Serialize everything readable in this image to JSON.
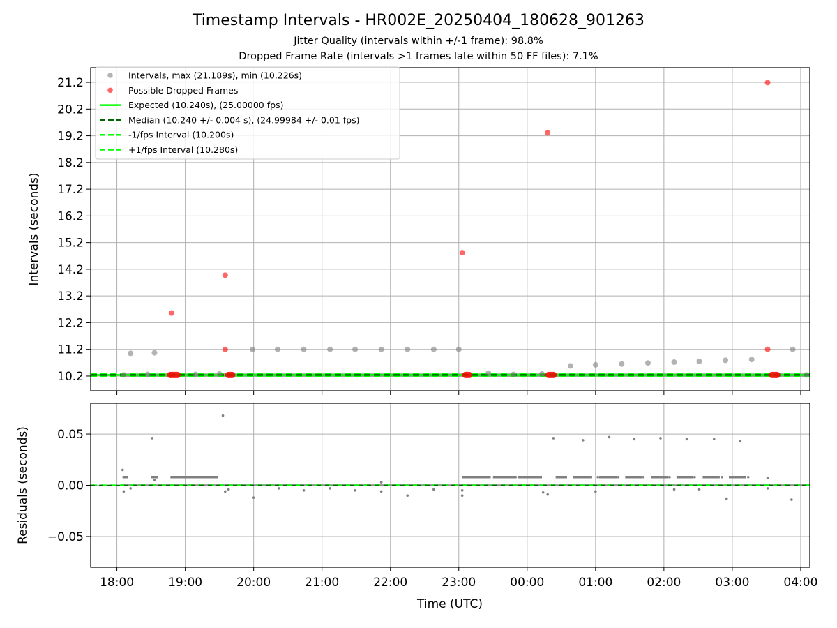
{
  "title": "Timestamp Intervals - HR002E_20250404_180628_901263",
  "subtitle_1": "Jitter Quality (intervals within +/-1 frame): 98.8%",
  "subtitle_2": "Dropped Frame Rate (intervals >1 frames late within 50 FF files): 7.1%",
  "colors": {
    "intervals": "#808080",
    "dropped": "#ff0000",
    "expected": "#00ff00",
    "median": "#006400",
    "grid": "#b0b0b0"
  },
  "legend": {
    "placement": "upper-left",
    "entries": [
      "Intervals, max (21.189s), min (10.226s)",
      "Possible Dropped Frames",
      "Expected (10.240s), (25.00000 fps)",
      "Median (10.240 +/- 0.004 s), (24.99984 +/- 0.01 fps)",
      "-1/fps Interval (10.200s)",
      "+1/fps Interval (10.280s)"
    ]
  },
  "chart_data": [
    {
      "type": "scatter",
      "panel": "top",
      "xlabel": "Time (UTC)",
      "ylabel": "Intervals (seconds)",
      "xlim": [
        "17:37",
        "04:08"
      ],
      "ylim": [
        9.65,
        21.75
      ],
      "grid": true,
      "y_ticks": [
        "10.2",
        "11.2",
        "12.2",
        "13.2",
        "14.2",
        "15.2",
        "16.2",
        "17.2",
        "18.2",
        "19.2",
        "20.2",
        "21.2"
      ],
      "y_tick_values": [
        10.2,
        11.2,
        12.2,
        13.2,
        14.2,
        15.2,
        16.2,
        17.2,
        18.2,
        19.2,
        20.2,
        21.2
      ],
      "x_ticks": [
        "18:00",
        "19:00",
        "20:00",
        "21:00",
        "22:00",
        "23:00",
        "00:00",
        "01:00",
        "02:00",
        "03:00",
        "04:00"
      ],
      "reference_lines": {
        "expected": 10.24,
        "median": 10.24,
        "minus_1_fps": 10.2,
        "plus_1_fps": 10.28
      },
      "series": [
        {
          "name": "Intervals, max (21.189s), min (10.226s)",
          "points": [
            [
              "18:06",
              10.24
            ],
            [
              "18:12",
              11.05
            ],
            [
              "18:27",
              10.26
            ],
            [
              "18:33",
              11.07
            ],
            [
              "18:48",
              10.24
            ],
            [
              "19:09",
              10.26
            ],
            [
              "19:30",
              10.28
            ],
            [
              "19:59",
              11.2
            ],
            [
              "20:21",
              11.2
            ],
            [
              "20:44",
              11.2
            ],
            [
              "21:07",
              11.2
            ],
            [
              "21:29",
              11.2
            ],
            [
              "21:52",
              11.2
            ],
            [
              "22:15",
              11.2
            ],
            [
              "22:38",
              11.2
            ],
            [
              "23:00",
              11.2
            ],
            [
              "23:26",
              10.31
            ],
            [
              "23:48",
              10.26
            ],
            [
              "00:13",
              10.28
            ],
            [
              "00:38",
              10.58
            ],
            [
              "01:00",
              10.62
            ],
            [
              "01:23",
              10.65
            ],
            [
              "01:46",
              10.69
            ],
            [
              "02:09",
              10.72
            ],
            [
              "02:31",
              10.75
            ],
            [
              "02:54",
              10.79
            ],
            [
              "03:17",
              10.82
            ],
            [
              "03:40",
              10.24
            ],
            [
              "03:53",
              11.2
            ],
            [
              "04:05",
              10.24
            ]
          ]
        },
        {
          "name": "Possible Dropped Frames",
          "points": [
            [
              "18:48",
              12.56
            ],
            [
              "19:35",
              13.98
            ],
            [
              "19:35",
              11.2
            ],
            [
              "23:03",
              14.82
            ],
            [
              "00:18",
              19.31
            ],
            [
              "03:31",
              21.19
            ],
            [
              "03:31",
              11.2
            ]
          ],
          "clusters_at_10_24": [
            [
              "18:44",
              "18:56"
            ],
            [
              "19:35",
              "19:44"
            ],
            [
              "23:03",
              "23:12"
            ],
            [
              "00:16",
              "00:26"
            ],
            [
              "03:32",
              "03:42"
            ]
          ]
        }
      ]
    },
    {
      "type": "scatter",
      "panel": "bottom",
      "xlabel": "Time (UTC)",
      "ylabel": "Residuals (seconds)",
      "xlim": [
        "17:37",
        "04:08"
      ],
      "ylim": [
        -0.08,
        0.08
      ],
      "grid": true,
      "y_ticks": [
        "0.05",
        "0.00",
        "−0.05"
      ],
      "y_tick_values": [
        0.05,
        0.0,
        -0.05
      ],
      "x_ticks": [
        "18:00",
        "19:00",
        "20:00",
        "21:00",
        "22:00",
        "23:00",
        "00:00",
        "01:00",
        "02:00",
        "03:00",
        "04:00"
      ],
      "reference_lines": {
        "zero": 0.0
      },
      "series": [
        {
          "name": "",
          "points": [
            [
              "18:05",
              0.015
            ],
            [
              "18:06",
              0.008
            ],
            [
              "18:08",
              0.008
            ],
            [
              "18:06",
              -0.006
            ],
            [
              "18:12",
              -0.003
            ],
            [
              "18:31",
              0.046
            ],
            [
              "18:31",
              0.008
            ],
            [
              "18:33",
              0.005
            ],
            [
              "18:48",
              0.008
            ],
            [
              "19:00",
              0.008
            ],
            [
              "19:15",
              0.008
            ],
            [
              "19:28",
              0.008
            ],
            [
              "19:33",
              0.068
            ],
            [
              "19:35",
              -0.006
            ],
            [
              "19:38",
              -0.004
            ],
            [
              "20:00",
              -0.012
            ],
            [
              "20:22",
              -0.003
            ],
            [
              "20:44",
              -0.005
            ],
            [
              "21:07",
              -0.003
            ],
            [
              "21:29",
              -0.005
            ],
            [
              "21:52",
              -0.006
            ],
            [
              "21:52",
              0.003
            ],
            [
              "22:15",
              -0.01
            ],
            [
              "22:38",
              -0.004
            ],
            [
              "23:03",
              -0.005
            ],
            [
              "23:03",
              -0.01
            ],
            [
              "23:15",
              0.008
            ],
            [
              "23:36",
              0.008
            ],
            [
              "23:50",
              0.008
            ],
            [
              "00:05",
              0.008
            ],
            [
              "00:14",
              -0.007
            ],
            [
              "00:18",
              -0.009
            ],
            [
              "00:23",
              0.046
            ],
            [
              "00:29",
              0.008
            ],
            [
              "00:42",
              0.008
            ],
            [
              "00:49",
              0.044
            ],
            [
              "01:00",
              -0.006
            ],
            [
              "01:02",
              0.008
            ],
            [
              "01:12",
              0.047
            ],
            [
              "01:20",
              0.008
            ],
            [
              "01:34",
              0.045
            ],
            [
              "01:42",
              0.008
            ],
            [
              "01:57",
              0.046
            ],
            [
              "02:05",
              0.008
            ],
            [
              "02:09",
              -0.004
            ],
            [
              "02:20",
              0.045
            ],
            [
              "02:27",
              0.008
            ],
            [
              "02:31",
              -0.004
            ],
            [
              "02:44",
              0.045
            ],
            [
              "02:51",
              0.008
            ],
            [
              "02:55",
              -0.013
            ],
            [
              "03:07",
              0.043
            ],
            [
              "03:14",
              0.008
            ],
            [
              "03:31",
              0.007
            ],
            [
              "03:31",
              -0.003
            ],
            [
              "03:52",
              -0.014
            ]
          ],
          "steps": [
            [
              "18:05",
              "18:10",
              0.008
            ],
            [
              "18:30",
              "18:36",
              0.008
            ],
            [
              "18:47",
              "19:28",
              0.008
            ],
            [
              "23:03",
              "23:28",
              0.008
            ],
            [
              "23:30",
              "23:50",
              0.008
            ],
            [
              "23:52",
              "00:13",
              0.008
            ],
            [
              "00:25",
              "00:35",
              0.008
            ],
            [
              "00:40",
              "00:57",
              0.008
            ],
            [
              "01:03",
              "01:19",
              0.008
            ],
            [
              "01:26",
              "01:41",
              0.008
            ],
            [
              "01:49",
              "02:04",
              0.008
            ],
            [
              "02:11",
              "02:26",
              0.008
            ],
            [
              "02:34",
              "02:49",
              0.008
            ],
            [
              "02:57",
              "03:12",
              0.008
            ]
          ]
        }
      ]
    }
  ]
}
